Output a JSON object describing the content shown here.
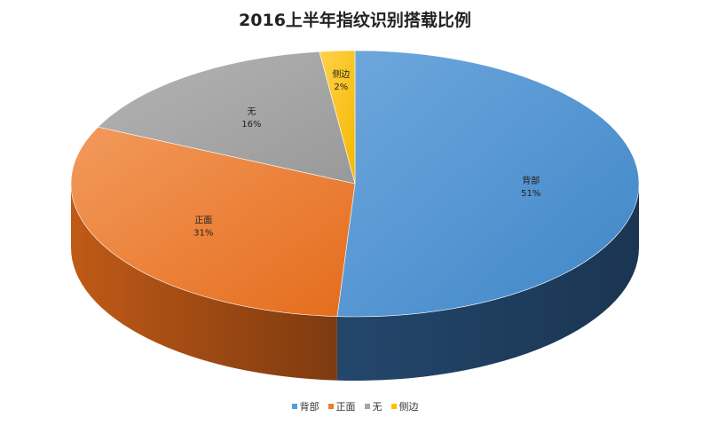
{
  "chart_data": {
    "type": "pie",
    "title": "2016上半年指纹识别搭载比例",
    "series": [
      {
        "name": "背部",
        "value": 51,
        "label": "51%",
        "color": "#5b9bd5"
      },
      {
        "name": "正面",
        "value": 31,
        "label": "31%",
        "color": "#ed7d31"
      },
      {
        "name": "无",
        "value": 16,
        "label": "16%",
        "color": "#a5a5a5"
      },
      {
        "name": "侧边",
        "value": 2,
        "label": "2%",
        "color": "#ffc000"
      }
    ],
    "legend_position": "bottom",
    "style": "3d"
  }
}
